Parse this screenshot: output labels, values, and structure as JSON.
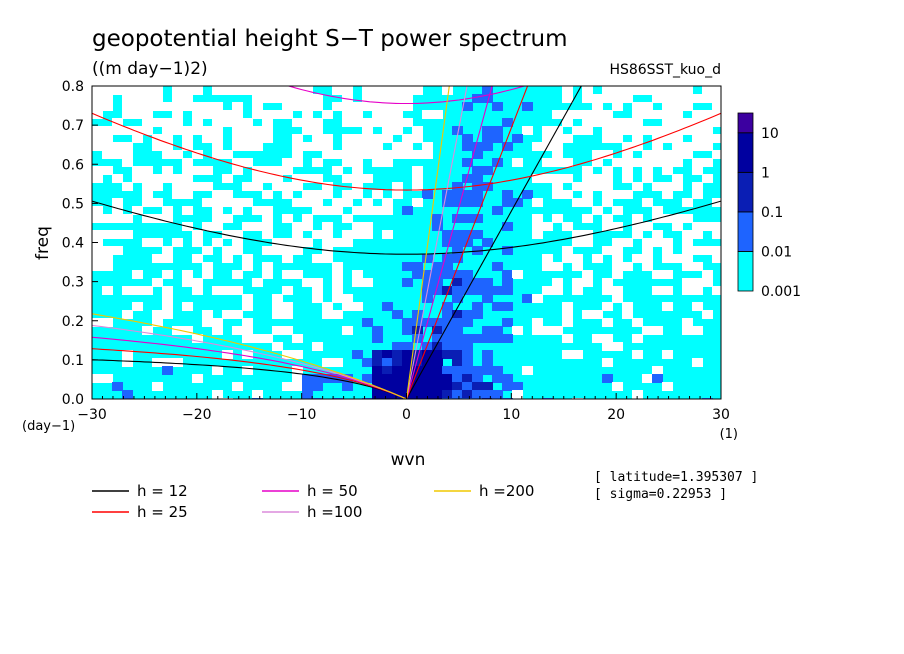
{
  "chart_data": {
    "type": "heatmap",
    "title": "geopotential height S−T power spectrum",
    "units": "((m day−1)2)",
    "experiment": "HS86SST_kuo_d",
    "xlabel": "wvn",
    "ylabel": "freq",
    "x_unit": "(1)",
    "y_unit": "(day−1)",
    "xlim": [
      -30,
      30
    ],
    "ylim": [
      0,
      0.8
    ],
    "x_ticks": [
      "−30",
      "−20",
      "−10",
      "0",
      "10",
      "20",
      "30"
    ],
    "y_ticks": [
      "0.0",
      "0.1",
      "0.2",
      "0.3",
      "0.4",
      "0.5",
      "0.6",
      "0.7",
      "0.8"
    ],
    "colorbar": {
      "levels": [
        "0.001",
        "0.01",
        "0.1",
        "1",
        "10"
      ],
      "colors": [
        "#00ffff",
        "#1e64ff",
        "#0a1eb4",
        "#0000a0",
        "#3c00a0"
      ]
    },
    "dispersion_curves": [
      {
        "label": "h = 12",
        "h": 12,
        "color": "#000000"
      },
      {
        "label": "h = 25",
        "h": 25,
        "color": "#ff0000"
      },
      {
        "label": "h = 50",
        "h": 50,
        "color": "#e600c8"
      },
      {
        "label": "h =100",
        "h": 100,
        "color": "#dc8cdc"
      },
      {
        "label": "h =200",
        "h": 200,
        "color": "#f0c800"
      }
    ],
    "info": [
      "[ latitude=1.395307 ]",
      "[ sigma=0.22953 ]"
    ]
  }
}
